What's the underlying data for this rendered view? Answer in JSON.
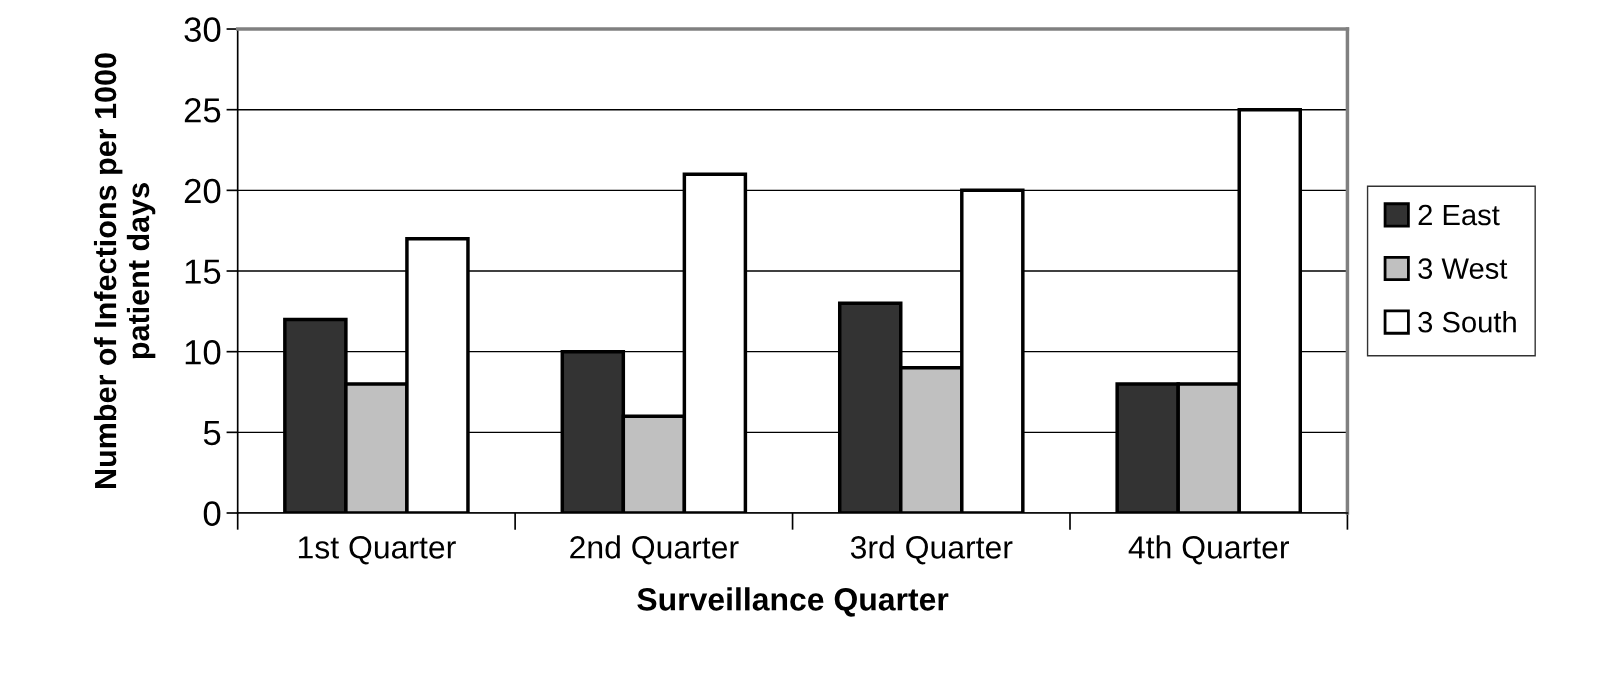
{
  "chart_data": {
    "type": "bar",
    "xlabel": "Surveillance Quarter",
    "ylabel": "Number of Infections per 1000 patient days",
    "categories": [
      "1st Quarter",
      "2nd Quarter",
      "3rd Quarter",
      "4th Quarter"
    ],
    "series": [
      {
        "name": "2 East",
        "color": "#333333",
        "values": [
          12,
          10,
          13,
          8
        ]
      },
      {
        "name": "3 West",
        "color": "#c0c0c0",
        "values": [
          8,
          6,
          9,
          8
        ]
      },
      {
        "name": "3 South",
        "color": "#ffffff",
        "values": [
          17,
          21,
          20,
          25
        ]
      }
    ],
    "ylim": [
      0,
      30
    ],
    "yticks": [
      0,
      5,
      10,
      15,
      20,
      25,
      30
    ],
    "grid": "y",
    "legend": "right"
  }
}
